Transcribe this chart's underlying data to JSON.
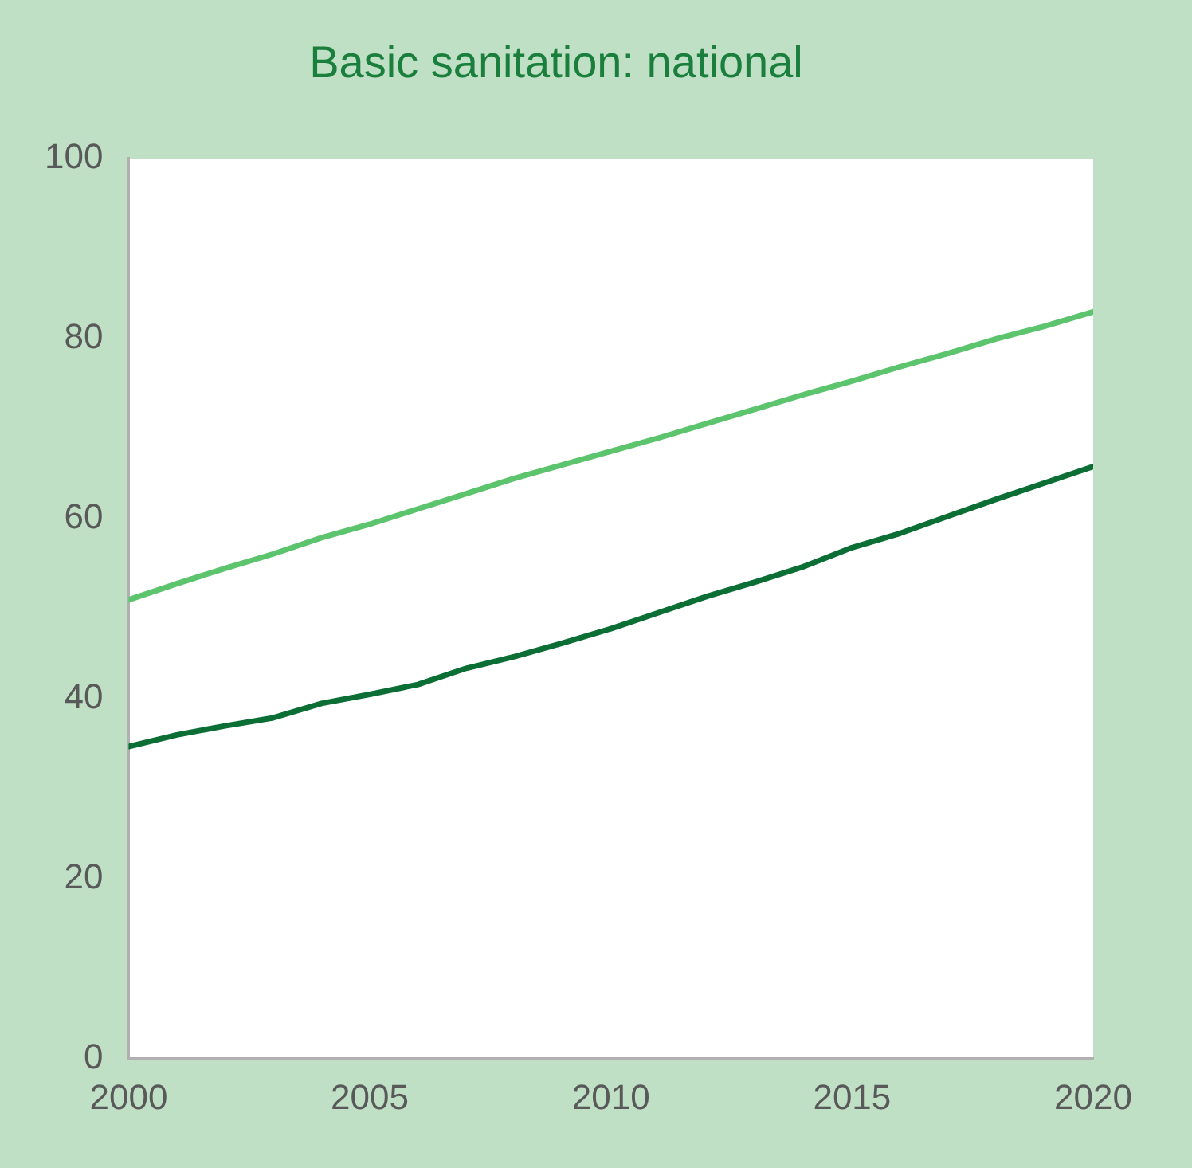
{
  "chart_data": {
    "type": "line",
    "title": "Basic sanitation: national",
    "x": [
      2000,
      2001,
      2002,
      2003,
      2004,
      2005,
      2006,
      2007,
      2008,
      2009,
      2010,
      2011,
      2012,
      2013,
      2014,
      2015,
      2016,
      2017,
      2018,
      2019,
      2020
    ],
    "series": [
      {
        "color": "#5cc46c",
        "values": [
          51.0,
          52.8,
          54.5,
          56.1,
          57.9,
          59.4,
          61.1,
          62.8,
          64.5,
          66.0,
          67.5,
          69.0,
          70.6,
          72.2,
          73.8,
          75.3,
          76.9,
          78.4,
          80.0,
          81.4,
          83.0
        ]
      },
      {
        "color": "#0b6e35",
        "values": [
          34.7,
          36.0,
          37.0,
          37.9,
          39.5,
          40.5,
          41.6,
          43.4,
          44.7,
          46.2,
          47.8,
          49.6,
          51.4,
          53.0,
          54.7,
          56.8,
          58.4,
          60.3,
          62.2,
          64.0,
          65.8
        ]
      }
    ],
    "xlim": [
      2000,
      2020
    ],
    "xticks": [
      2000,
      2005,
      2010,
      2015,
      2020
    ],
    "ylim": [
      0,
      100
    ],
    "yticks": [
      0,
      20,
      40,
      60,
      80,
      100
    ],
    "grid": false,
    "legend": false,
    "marker": "none",
    "line_style": "solid"
  }
}
